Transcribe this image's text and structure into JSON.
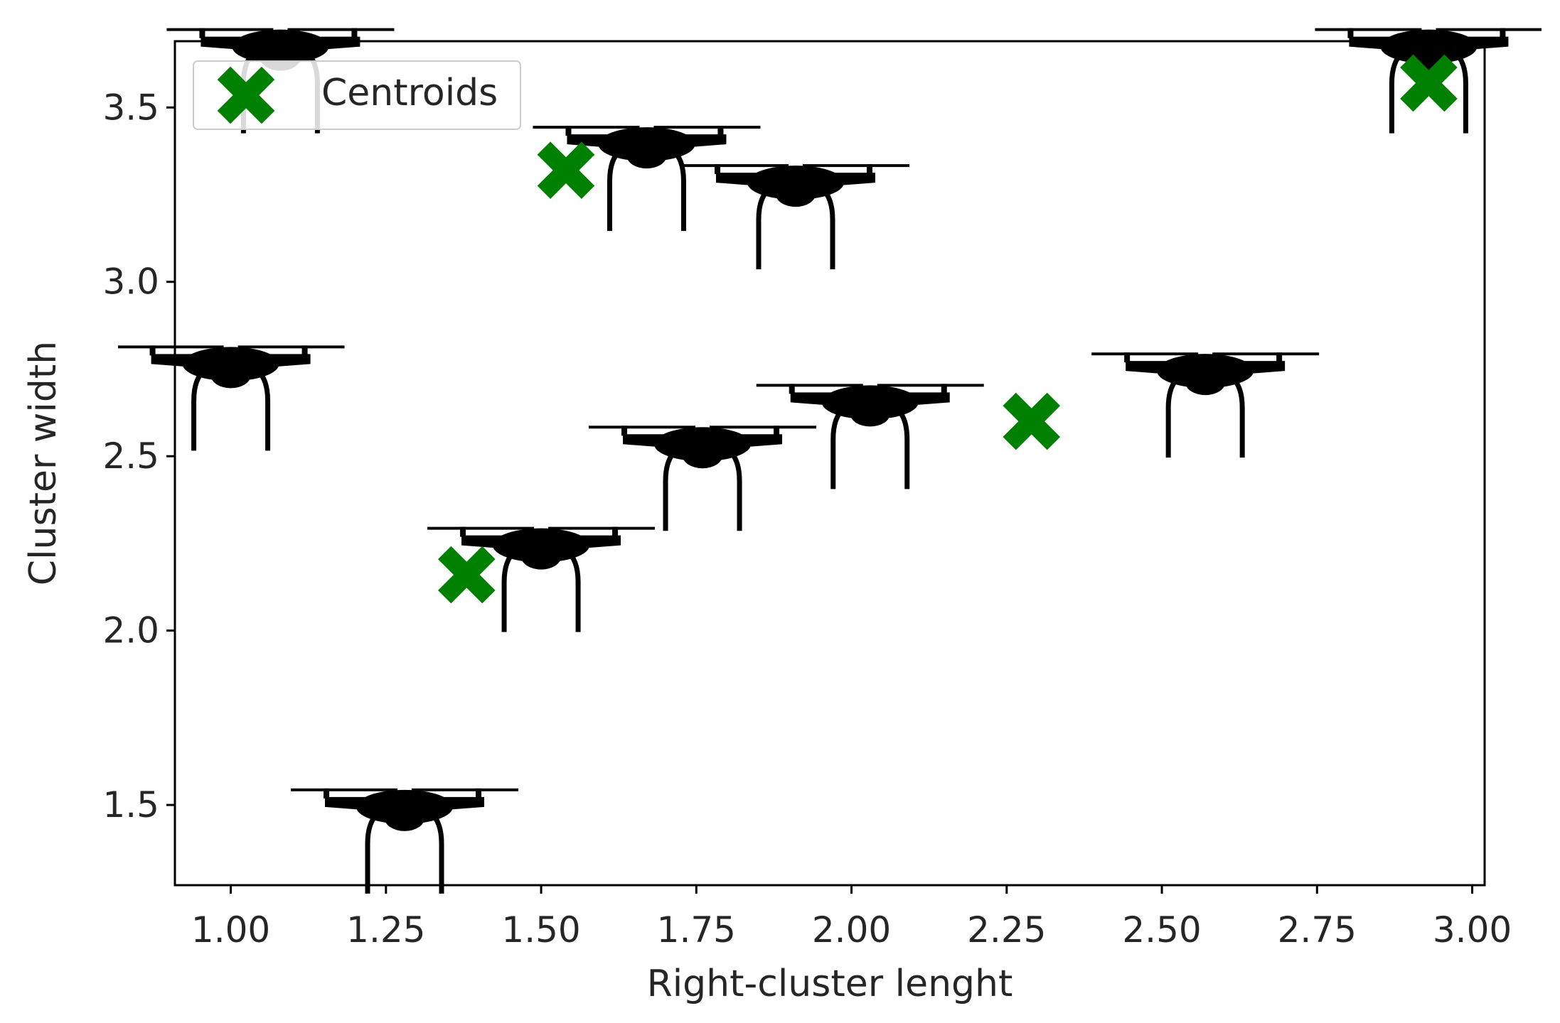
{
  "chart_data": {
    "type": "scatter",
    "title": "",
    "xlabel": "Right-cluster lenght",
    "ylabel": "Cluster width",
    "xlim": [
      0.91,
      3.02
    ],
    "ylim": [
      1.27,
      3.69
    ],
    "xticks": [
      "1.00",
      "1.25",
      "1.50",
      "1.75",
      "2.00",
      "2.25",
      "2.50",
      "2.75",
      "3.00"
    ],
    "yticks": [
      "1.5",
      "2.0",
      "2.5",
      "3.0",
      "3.5"
    ],
    "grid": false,
    "legend": {
      "position": "top-left",
      "entries": [
        "Centroids"
      ]
    },
    "marker_icon": "drone-icon",
    "centroid_color": "#008000",
    "drone_color": "#000000",
    "points": [
      {
        "x": 1.08,
        "y": 3.65
      },
      {
        "x": 1.0,
        "y": 2.74
      },
      {
        "x": 1.28,
        "y": 1.47
      },
      {
        "x": 1.5,
        "y": 2.22
      },
      {
        "x": 1.67,
        "y": 3.37
      },
      {
        "x": 1.76,
        "y": 2.51
      },
      {
        "x": 1.91,
        "y": 3.26
      },
      {
        "x": 2.03,
        "y": 2.63
      },
      {
        "x": 2.57,
        "y": 2.72
      },
      {
        "x": 2.93,
        "y": 3.65
      }
    ],
    "series": [
      {
        "name": "Centroids",
        "x": [
          1.38,
          1.54,
          2.29,
          2.93
        ],
        "y": [
          2.16,
          3.32,
          2.6,
          3.57
        ]
      }
    ]
  }
}
